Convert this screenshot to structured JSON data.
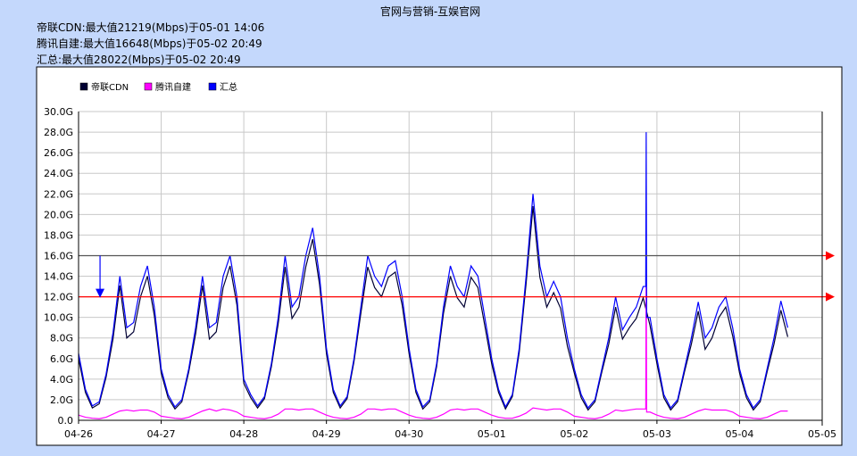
{
  "page_title": "官网与营销-互娱官网",
  "stats": [
    "帝联CDN:最大值21219(Mbps)于05-01 14:06",
    "腾讯自建:最大值16648(Mbps)于05-02 20:49",
    "汇总:最大值28022(Mbps)于05-02 20:49"
  ],
  "chart_data": {
    "type": "line",
    "title": "官网与营销-互娱官网",
    "xlabel": "",
    "ylabel": "",
    "ylim": [
      0,
      30
    ],
    "y_unit": "G",
    "y_ticks": [
      "0.0",
      "2.0G",
      "4.0G",
      "6.0G",
      "8.0G",
      "10.0G",
      "12.0G",
      "14.0G",
      "16.0G",
      "18.0G",
      "20.0G",
      "22.0G",
      "24.0G",
      "26.0G",
      "28.0G",
      "30.0G"
    ],
    "x_ticks": [
      "04-26",
      "04-27",
      "04-28",
      "04-29",
      "04-30",
      "05-01",
      "05-02",
      "05-03",
      "05-04",
      "05-05"
    ],
    "x_range_days": [
      0,
      9
    ],
    "sample_step_hours": 2,
    "grid": true,
    "legend_position": "top-left",
    "threshold_lines": [
      {
        "value": 16,
        "color": "#555555"
      },
      {
        "value": 12,
        "color": "#ff0000"
      }
    ],
    "marker_arrow": {
      "day": 0.26,
      "from": 16,
      "to": 12,
      "color": "#0000ff"
    },
    "spike": {
      "time": "05-02 20:49",
      "day": 6.87,
      "total": 28.0,
      "tencent": 16.6
    },
    "series": [
      {
        "name": "帝联CDN",
        "color": "#000033",
        "values": [
          6.0,
          2.7,
          1.2,
          1.6,
          4.2,
          7.9,
          13.1,
          8.0,
          8.6,
          12.0,
          14.0,
          10.2,
          4.6,
          2.2,
          1.1,
          1.8,
          4.7,
          8.4,
          13.1,
          7.9,
          8.6,
          12.9,
          15.0,
          11.2,
          3.6,
          2.2,
          1.2,
          2.1,
          5.2,
          9.4,
          14.9,
          9.9,
          11.0,
          14.9,
          17.6,
          13.2,
          6.5,
          2.7,
          1.2,
          2.1,
          5.7,
          10.4,
          14.9,
          12.9,
          12.0,
          13.9,
          14.4,
          11.2,
          6.5,
          2.7,
          1.1,
          1.8,
          5.2,
          10.4,
          14.0,
          11.9,
          11.0,
          13.9,
          12.9,
          9.2,
          5.5,
          2.7,
          1.1,
          2.3,
          6.6,
          13.3,
          20.8,
          13.9,
          11.0,
          12.4,
          10.9,
          7.2,
          4.6,
          2.2,
          1.0,
          1.8,
          4.7,
          7.4,
          11.0,
          7.9,
          9.0,
          9.9,
          11.9,
          9.2,
          5.5,
          2.2,
          1.0,
          1.8,
          4.7,
          7.4,
          10.6,
          6.9,
          8.0,
          10.0,
          11.0,
          8.2,
          4.6,
          2.2,
          1.0,
          1.8,
          4.7,
          7.4,
          10.7,
          8.1
        ]
      },
      {
        "name": "腾讯自建",
        "color": "#ff00ff",
        "values": [
          0.5,
          0.3,
          0.2,
          0.15,
          0.3,
          0.6,
          0.9,
          1.0,
          0.9,
          1.0,
          1.0,
          0.8,
          0.4,
          0.3,
          0.2,
          0.15,
          0.3,
          0.6,
          0.9,
          1.1,
          0.9,
          1.1,
          1.0,
          0.8,
          0.4,
          0.3,
          0.2,
          0.15,
          0.3,
          0.6,
          1.1,
          1.1,
          1.0,
          1.1,
          1.1,
          0.8,
          0.5,
          0.3,
          0.2,
          0.15,
          0.3,
          0.6,
          1.1,
          1.1,
          1.0,
          1.1,
          1.1,
          0.8,
          0.5,
          0.3,
          0.2,
          0.15,
          0.3,
          0.6,
          1.0,
          1.1,
          1.0,
          1.1,
          1.1,
          0.8,
          0.5,
          0.3,
          0.2,
          0.2,
          0.4,
          0.7,
          1.2,
          1.1,
          1.0,
          1.1,
          1.1,
          0.8,
          0.4,
          0.3,
          0.2,
          0.15,
          0.3,
          0.6,
          1.0,
          0.9,
          1.0,
          1.1,
          1.1,
          0.8,
          0.5,
          0.3,
          0.2,
          0.15,
          0.3,
          0.6,
          0.9,
          1.1,
          1.0,
          1.0,
          1.0,
          0.8,
          0.4,
          0.3,
          0.2,
          0.15,
          0.3,
          0.6,
          0.9,
          0.9
        ]
      },
      {
        "name": "汇总",
        "color": "#0000ff",
        "values": [
          6.5,
          3.0,
          1.4,
          1.8,
          4.5,
          8.5,
          14.0,
          9.0,
          9.5,
          13.0,
          15.0,
          11.0,
          5.0,
          2.5,
          1.3,
          2.0,
          5.0,
          9.0,
          14.0,
          9.0,
          9.5,
          14.0,
          16.0,
          12.0,
          4.0,
          2.5,
          1.4,
          2.3,
          5.5,
          10.0,
          16.0,
          11.0,
          12.0,
          16.0,
          18.7,
          14.0,
          7.0,
          3.0,
          1.4,
          2.3,
          6.0,
          11.0,
          16.0,
          14.0,
          13.0,
          15.0,
          15.5,
          12.0,
          7.0,
          3.0,
          1.3,
          2.0,
          5.5,
          11.0,
          15.0,
          13.0,
          12.0,
          15.0,
          14.0,
          10.0,
          6.0,
          3.0,
          1.3,
          2.5,
          7.0,
          14.0,
          22.0,
          15.0,
          12.0,
          13.5,
          12.0,
          8.0,
          5.0,
          2.5,
          1.2,
          2.0,
          5.0,
          8.0,
          12.0,
          8.8,
          10.0,
          11.0,
          13.0,
          10.0,
          6.0,
          2.5,
          1.2,
          2.0,
          5.0,
          8.0,
          11.5,
          8.0,
          9.0,
          11.0,
          12.0,
          9.0,
          5.0,
          2.5,
          1.2,
          2.0,
          5.0,
          8.0,
          11.6,
          9.0
        ]
      }
    ]
  }
}
